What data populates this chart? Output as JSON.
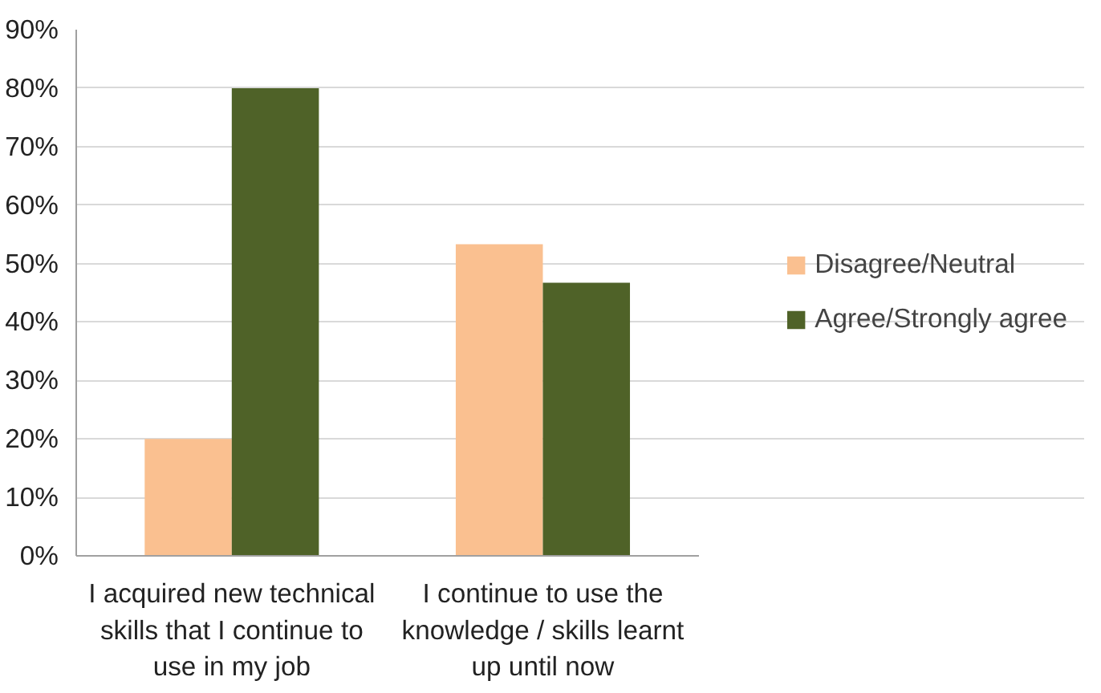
{
  "chart_data": {
    "type": "bar",
    "categories": [
      "I acquired new technical skills that I continue to use in my job",
      "I continue to use the knowledge / skills learnt up until now"
    ],
    "series": [
      {
        "name": "Disagree/Neutral",
        "color": "#fac090",
        "values": [
          20,
          53.3
        ]
      },
      {
        "name": "Agree/Strongly agree",
        "color": "#4f6228",
        "values": [
          80,
          46.7
        ]
      }
    ],
    "ylim": [
      0,
      90
    ],
    "yticks": [
      {
        "value": 0,
        "label": "0%"
      },
      {
        "value": 10,
        "label": "10%"
      },
      {
        "value": 20,
        "label": "20%"
      },
      {
        "value": 30,
        "label": "30%"
      },
      {
        "value": 40,
        "label": "40%"
      },
      {
        "value": 50,
        "label": "50%"
      },
      {
        "value": 60,
        "label": "60%"
      },
      {
        "value": 70,
        "label": "70%"
      },
      {
        "value": 80,
        "label": "80%"
      },
      {
        "value": 90,
        "label": "90%"
      }
    ],
    "grid": "y",
    "legend": "right"
  }
}
